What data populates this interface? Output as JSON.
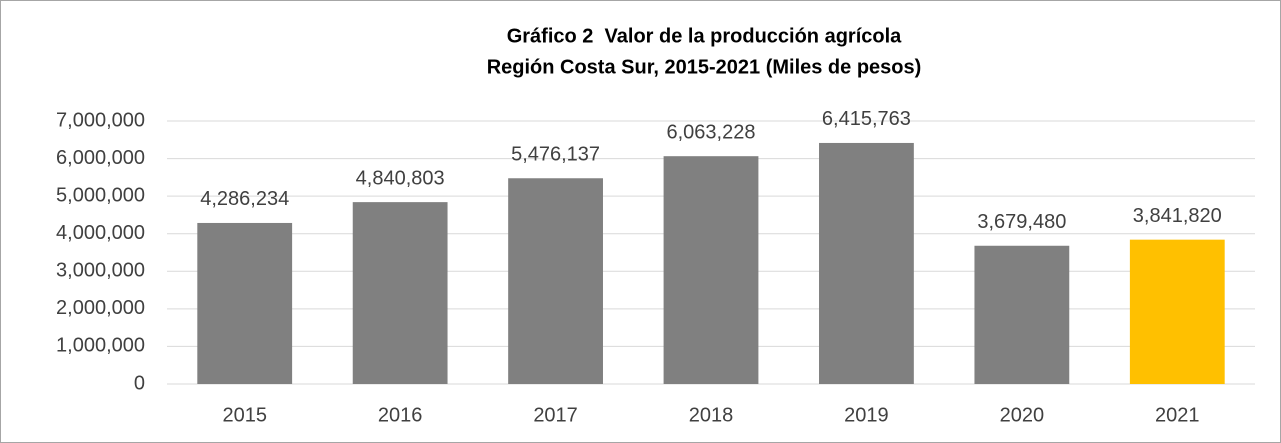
{
  "chart_data": {
    "type": "bar",
    "title": [
      "Gráfico 2  Valor de la producción agrícola",
      "Región Costa Sur, 2015-2021 (Miles de pesos)"
    ],
    "categories": [
      "2015",
      "2016",
      "2017",
      "2018",
      "2019",
      "2020",
      "2021"
    ],
    "values": [
      4286234,
      4840803,
      5476137,
      6063228,
      6415763,
      3679480,
      3841820
    ],
    "value_labels": [
      "4,286,234",
      "4,840,803",
      "5,476,137",
      "6,063,228",
      "6,415,763",
      "3,679,480",
      "3,841,820"
    ],
    "colors": [
      "#808080",
      "#808080",
      "#808080",
      "#808080",
      "#808080",
      "#808080",
      "#ffc000"
    ],
    "ylim": [
      0,
      7000000
    ],
    "yticks": [
      0,
      {
        "value": 1000000,
        "label": "1,000,000"
      },
      {
        "value": 2000000,
        "label": "2,000,000"
      },
      {
        "value": 3000000,
        "label": "3,000,000"
      },
      {
        "value": 4000000,
        "label": "4,000,000"
      },
      {
        "value": 5000000,
        "label": "5,000,000"
      },
      {
        "value": 6000000,
        "label": "6,000,000"
      },
      {
        "value": 7000000,
        "label": "7,000,000"
      }
    ],
    "grid": true
  }
}
